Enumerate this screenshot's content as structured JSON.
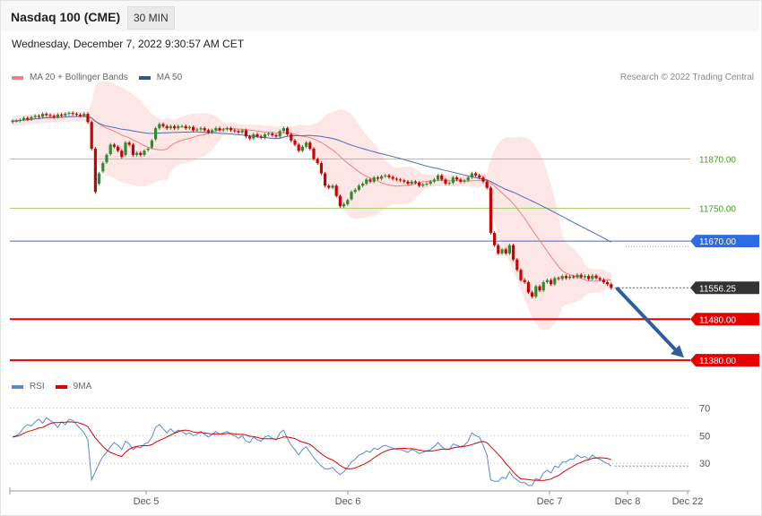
{
  "header": {
    "title": "Nasdaq 100 (CME)",
    "timeframe": "30 MIN",
    "datetime": "Wednesday, December 7, 2022 9:30:57 AM CET"
  },
  "legend_top": {
    "items": [
      {
        "label": "MA 20 + Bollinger Bands",
        "color": "#f08080"
      },
      {
        "label": "MA 50",
        "color": "#2f5597"
      }
    ],
    "credit": "Research © 2022 Trading Central"
  },
  "legend_bottom": {
    "items": [
      {
        "label": "RSI",
        "color": "#5b87d6"
      },
      {
        "label": "9MA",
        "color": "#e00000"
      }
    ]
  },
  "colors": {
    "up_candle": "#2e8b2e",
    "down_candle": "#cc0000",
    "band_fill": "#fde2e2",
    "ma20": "#f08080",
    "ma50": "#4a6fb5",
    "support_resistance_green": "#a6d17a",
    "pivot_blue": "#2e6be6",
    "support_red": "#e60000",
    "arrow": "#2f5e9e"
  },
  "chart_data": {
    "type": "candlestick",
    "x_ticks": [
      "Dec 5",
      "Dec 6",
      "Dec 7",
      "Dec 8",
      "Dec 22"
    ],
    "price_ylim": [
      11330,
      12050
    ],
    "levels": [
      {
        "value": 11870.0,
        "label": "11870.00",
        "style": "green"
      },
      {
        "value": 11750.0,
        "label": "11750.00",
        "style": "green"
      },
      {
        "value": 11670.0,
        "label": "11670.00",
        "style": "blue"
      },
      {
        "value": 11556.25,
        "label": "11556.25",
        "style": "current"
      },
      {
        "value": 11480.0,
        "label": "11480.00",
        "style": "red"
      },
      {
        "value": 11380.0,
        "label": "11380.00",
        "style": "red"
      }
    ],
    "arrow": {
      "from_price": 11556.25,
      "to_price": 11380.0
    },
    "close": [
      11963,
      11963,
      11965,
      11970,
      11967,
      11972,
      11975,
      11973,
      11980,
      11977,
      11975,
      11972,
      11978,
      11976,
      11980,
      11982,
      11980,
      11978,
      11975,
      11980,
      11960,
      11895,
      11790,
      11835,
      11860,
      11880,
      11905,
      11900,
      11890,
      11875,
      11910,
      11905,
      11880,
      11885,
      11880,
      11890,
      11895,
      11915,
      11945,
      11955,
      11950,
      11945,
      11950,
      11945,
      11950,
      11950,
      11945,
      11948,
      11940,
      11942,
      11945,
      11940,
      11935,
      11940,
      11945,
      11940,
      11942,
      11945,
      11940,
      11938,
      11935,
      11940,
      11925,
      11920,
      11930,
      11925,
      11922,
      11930,
      11932,
      11928,
      11925,
      11938,
      11945,
      11930,
      11915,
      11905,
      11890,
      11900,
      11910,
      11895,
      11870,
      11860,
      11835,
      11805,
      11800,
      11805,
      11780,
      11755,
      11760,
      11770,
      11790,
      11795,
      11805,
      11810,
      11820,
      11815,
      11825,
      11822,
      11828,
      11830,
      11826,
      11822,
      11820,
      11818,
      11815,
      11810,
      11815,
      11812,
      11805,
      11808,
      11810,
      11815,
      11820,
      11830,
      11820,
      11810,
      11812,
      11825,
      11820,
      11815,
      11818,
      11825,
      11835,
      11830,
      11825,
      11815,
      11800,
      11690,
      11660,
      11640,
      11650,
      11640,
      11660,
      11625,
      11600,
      11575,
      11570,
      11545,
      11535,
      11560,
      11550,
      11570,
      11575,
      11565,
      11580,
      11578,
      11585,
      11580,
      11584,
      11582,
      11588,
      11582,
      11585,
      11578,
      11586,
      11580,
      11576,
      11570,
      11565,
      11556.25
    ],
    "open": [
      11960,
      11963,
      11963,
      11966,
      11970,
      11967,
      11972,
      11975,
      11973,
      11980,
      11977,
      11975,
      11972,
      11978,
      11976,
      11980,
      11982,
      11980,
      11978,
      11975,
      11980,
      11960,
      11895,
      11810,
      11840,
      11862,
      11882,
      11905,
      11900,
      11890,
      11880,
      11910,
      11905,
      11880,
      11885,
      11880,
      11892,
      11898,
      11918,
      11945,
      11955,
      11950,
      11945,
      11950,
      11945,
      11950,
      11950,
      11945,
      11948,
      11940,
      11942,
      11945,
      11940,
      11935,
      11940,
      11945,
      11940,
      11942,
      11945,
      11940,
      11938,
      11935,
      11940,
      11925,
      11920,
      11930,
      11925,
      11922,
      11930,
      11932,
      11928,
      11925,
      11938,
      11945,
      11930,
      11915,
      11905,
      11890,
      11900,
      11910,
      11895,
      11870,
      11860,
      11835,
      11805,
      11800,
      11805,
      11780,
      11755,
      11760,
      11772,
      11790,
      11795,
      11805,
      11810,
      11820,
      11815,
      11825,
      11822,
      11828,
      11830,
      11826,
      11822,
      11820,
      11818,
      11815,
      11810,
      11815,
      11812,
      11805,
      11808,
      11810,
      11815,
      11820,
      11830,
      11820,
      11810,
      11812,
      11825,
      11820,
      11815,
      11818,
      11825,
      11835,
      11830,
      11825,
      11815,
      11800,
      11690,
      11660,
      11640,
      11650,
      11640,
      11660,
      11625,
      11600,
      11575,
      11570,
      11545,
      11535,
      11560,
      11550,
      11570,
      11575,
      11565,
      11580,
      11578,
      11585,
      11580,
      11584,
      11582,
      11588,
      11582,
      11585,
      11578,
      11586,
      11580,
      11576,
      11570,
      11565
    ],
    "rsi_ylim": [
      12,
      80
    ],
    "rsi_levels": [
      70,
      50,
      30
    ],
    "rsi": [
      49,
      50,
      52,
      56,
      58,
      57,
      60,
      62,
      59,
      63,
      61,
      59,
      56,
      60,
      58,
      62,
      61,
      58,
      55,
      52,
      47,
      18,
      24,
      30,
      35,
      38,
      42,
      45,
      43,
      40,
      46,
      44,
      40,
      42,
      41,
      44,
      45,
      49,
      56,
      58,
      55,
      52,
      55,
      52,
      54,
      53,
      51,
      52,
      50,
      51,
      53,
      51,
      49,
      51,
      53,
      51,
      52,
      53,
      51,
      50,
      48,
      50,
      46,
      45,
      49,
      47,
      46,
      49,
      50,
      48,
      47,
      52,
      54,
      48,
      43,
      40,
      36,
      40,
      42,
      38,
      34,
      31,
      28,
      26,
      26,
      27,
      24,
      22,
      24,
      27,
      31,
      33,
      36,
      37,
      39,
      38,
      41,
      40,
      42,
      43,
      42,
      41,
      40,
      40,
      39,
      38,
      40,
      39,
      37,
      38,
      39,
      40,
      42,
      45,
      42,
      40,
      40,
      44,
      43,
      42,
      43,
      46,
      52,
      50,
      49,
      43,
      36,
      18,
      17,
      17,
      20,
      19,
      24,
      20,
      18,
      16,
      16,
      14,
      14,
      19,
      18,
      23,
      25,
      23,
      28,
      27,
      31,
      31,
      33,
      33,
      36,
      34,
      35,
      33,
      36,
      34,
      33,
      31,
      30,
      28
    ]
  }
}
